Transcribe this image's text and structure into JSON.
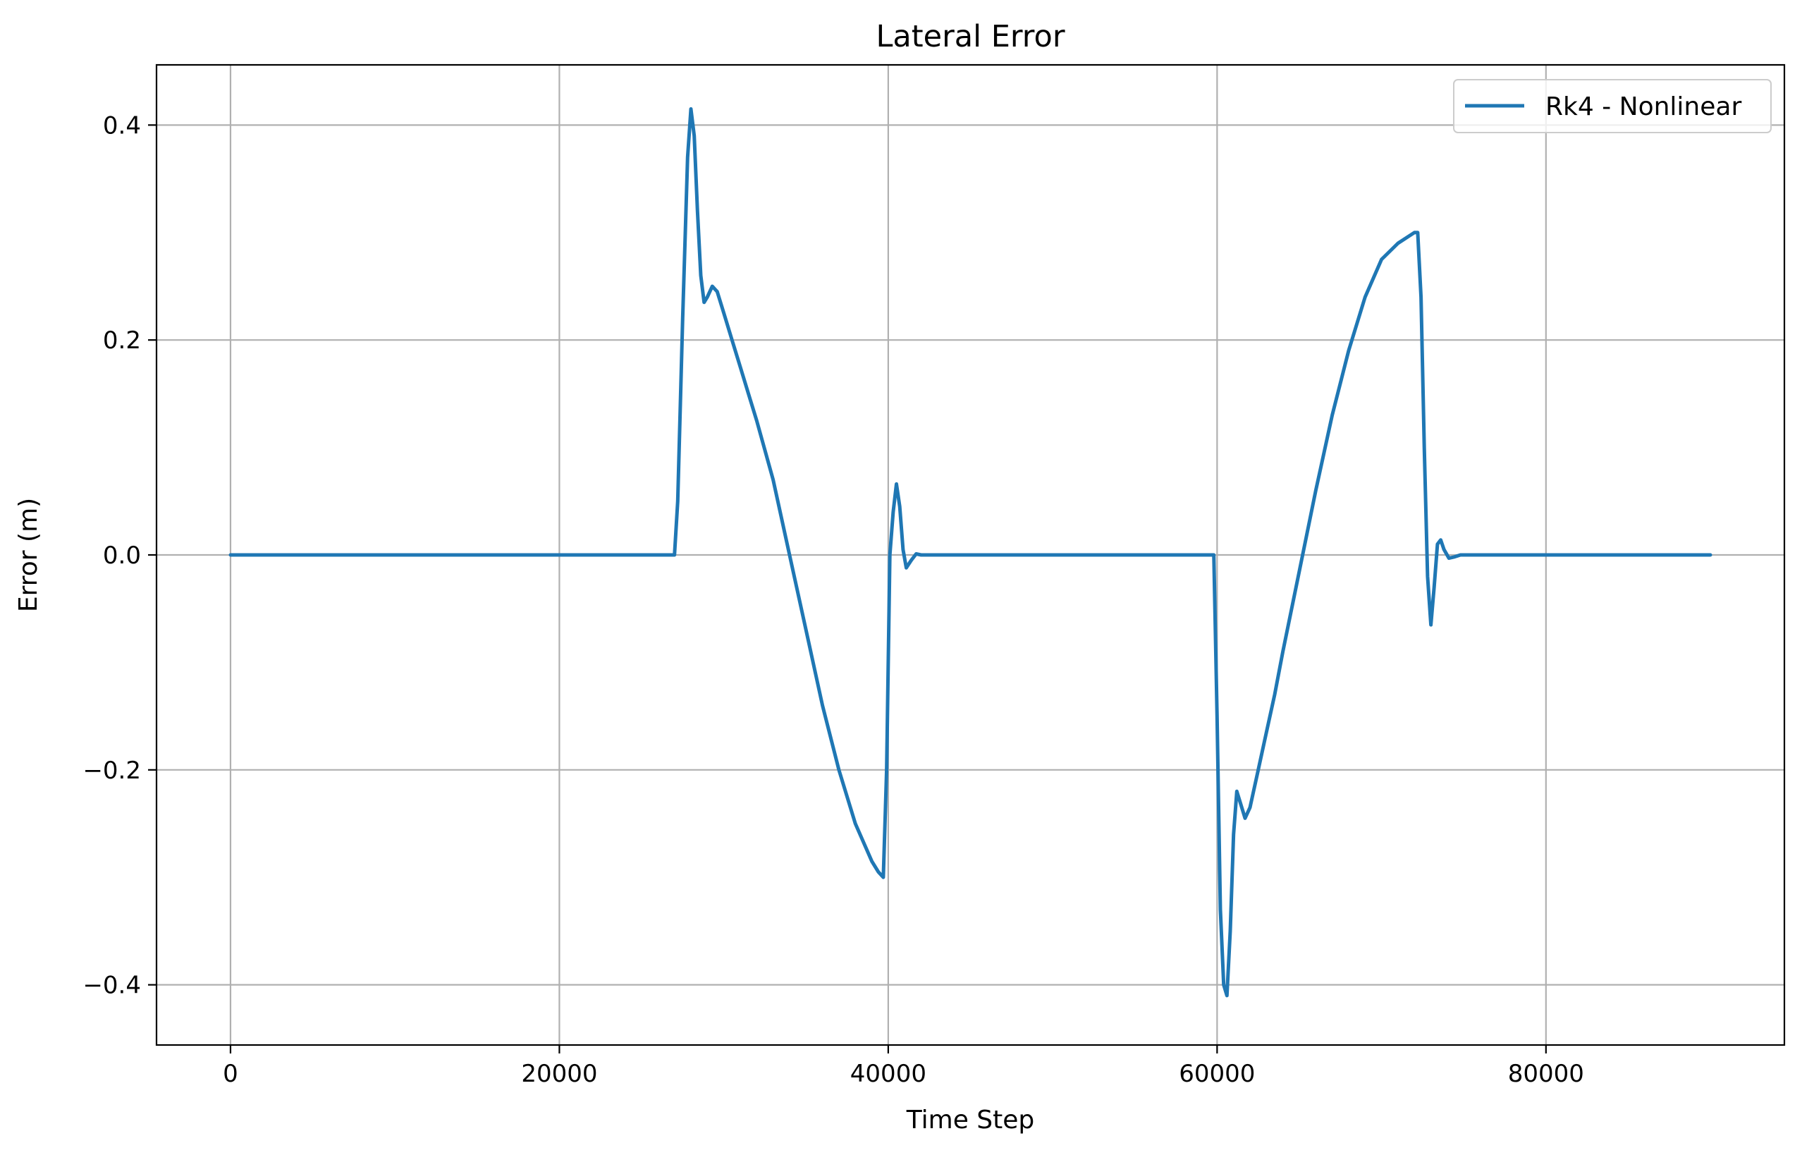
{
  "chart_data": {
    "type": "line",
    "title": "Lateral Error",
    "xlabel": "Time Step",
    "ylabel": "Error (m)",
    "xlim": [
      -4500,
      94500
    ],
    "ylim": [
      -0.456,
      0.456
    ],
    "grid": true,
    "legend_position": "upper right",
    "x_ticks": [
      {
        "value": 0,
        "label": "0"
      },
      {
        "value": 20000,
        "label": "20000"
      },
      {
        "value": 40000,
        "label": "40000"
      },
      {
        "value": 60000,
        "label": "60000"
      },
      {
        "value": 80000,
        "label": "80000"
      }
    ],
    "y_ticks": [
      {
        "value": -0.4,
        "label": "−0.4"
      },
      {
        "value": -0.2,
        "label": "−0.2"
      },
      {
        "value": 0.0,
        "label": "0.0"
      },
      {
        "value": 0.2,
        "label": "0.2"
      },
      {
        "value": 0.4,
        "label": "0.4"
      }
    ],
    "series": [
      {
        "name": "Rk4 - Nonlinear",
        "color": "#1f77b4",
        "x": [
          0,
          10000,
          20000,
          27000,
          27200,
          27500,
          27800,
          28000,
          28200,
          28400,
          28600,
          28800,
          29000,
          29300,
          29600,
          30000,
          30500,
          31000,
          31500,
          32000,
          33000,
          34000,
          35000,
          36000,
          37000,
          38000,
          39000,
          39400,
          39700,
          39900,
          40100,
          40300,
          40500,
          40700,
          40900,
          41100,
          41400,
          41700,
          42000,
          42500,
          43000,
          50000,
          59500,
          59800,
          60000,
          60200,
          60400,
          60600,
          60800,
          61000,
          61200,
          61400,
          61700,
          62000,
          62500,
          63000,
          63500,
          64000,
          65000,
          66000,
          67000,
          68000,
          69000,
          70000,
          71000,
          72000,
          72200,
          72400,
          72600,
          72800,
          73000,
          73200,
          73400,
          73600,
          73800,
          74100,
          74400,
          74800,
          75200,
          76000,
          90000
        ],
        "y": [
          0.0,
          0.0,
          0.0,
          0.0,
          0.05,
          0.22,
          0.37,
          0.415,
          0.39,
          0.32,
          0.26,
          0.235,
          0.24,
          0.25,
          0.245,
          0.225,
          0.2,
          0.175,
          0.15,
          0.125,
          0.07,
          0.0,
          -0.07,
          -0.14,
          -0.2,
          -0.25,
          -0.285,
          -0.295,
          -0.3,
          -0.2,
          0.0,
          0.04,
          0.066,
          0.045,
          0.005,
          -0.012,
          -0.005,
          0.001,
          0.0,
          0.0,
          0.0,
          0.0,
          0.0,
          0.0,
          -0.15,
          -0.33,
          -0.4,
          -0.41,
          -0.35,
          -0.26,
          -0.22,
          -0.23,
          -0.245,
          -0.235,
          -0.2,
          -0.165,
          -0.13,
          -0.09,
          -0.015,
          0.06,
          0.13,
          0.19,
          0.24,
          0.275,
          0.29,
          0.3,
          0.3,
          0.24,
          0.1,
          -0.02,
          -0.065,
          -0.03,
          0.01,
          0.014,
          0.005,
          -0.003,
          -0.002,
          0.0,
          0.0,
          0.0,
          0.0
        ]
      }
    ]
  }
}
